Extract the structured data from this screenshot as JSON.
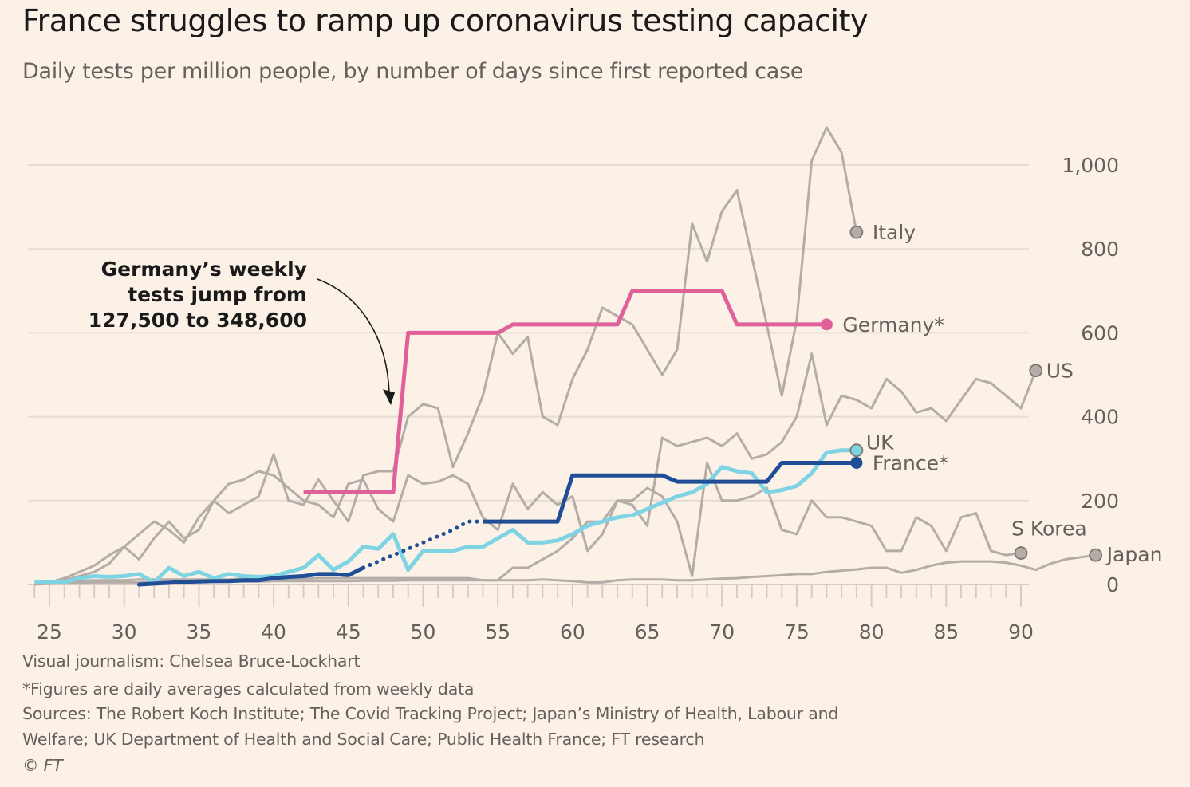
{
  "header": {
    "title": "France struggles to ramp up coronavirus testing capacity",
    "subtitle": "Daily tests per million people, by number of days since first reported case"
  },
  "footer": {
    "credit": "Visual journalism: Chelsea Bruce-Lockhart",
    "note": "*Figures are daily averages calculated from weekly data",
    "sources_line1": "Sources: The Robert Koch Institute; The Covid Tracking Project; Japan’s Ministry of Health, Labour and",
    "sources_line2": "Welfare; UK Department of Health and Social Care; Public Health France; FT research",
    "copyright": "© FT"
  },
  "chart_data": {
    "type": "line",
    "title": "France struggles to ramp up coronavirus testing capacity",
    "subtitle": "Daily tests per million people, by number of days since first reported case",
    "xlabel": "Days since first reported case",
    "ylabel": "Daily tests per million people",
    "xlim": [
      24,
      90
    ],
    "ylim": [
      0,
      1000
    ],
    "x_ticks": [
      25,
      30,
      35,
      40,
      45,
      50,
      55,
      60,
      65,
      70,
      75,
      80,
      85,
      90
    ],
    "y_ticks": [
      0,
      200,
      400,
      600,
      800,
      1000
    ],
    "y_tick_labels": [
      "0",
      "200",
      "400",
      "600",
      "800",
      "1,000"
    ],
    "y_axis_side": "right",
    "grid": true,
    "annotation": {
      "lines": [
        "Germany’s weekly",
        "tests jump from",
        "127,500 to 348,600"
      ],
      "points_to": {
        "x": 48,
        "y": 450
      }
    },
    "series": [
      {
        "name": "Italy",
        "label": "Italy",
        "color": "#b3aca7",
        "highlight": false,
        "label_pos": "right",
        "x_start": 24,
        "values": [
          0,
          5,
          10,
          20,
          30,
          50,
          90,
          60,
          110,
          150,
          110,
          130,
          200,
          170,
          190,
          210,
          310,
          200,
          190,
          250,
          200,
          150,
          260,
          270,
          270,
          400,
          430,
          420,
          280,
          360,
          450,
          600,
          550,
          590,
          400,
          380,
          490,
          560,
          660,
          640,
          620,
          560,
          500,
          560,
          860,
          770,
          890,
          940,
          780,
          620,
          450,
          630,
          1010,
          1090,
          1030,
          840
        ]
      },
      {
        "name": "US",
        "label": "US",
        "color": "#b3aca7",
        "highlight": false,
        "label_pos": "right",
        "x_start": 24,
        "values": [
          0,
          5,
          15,
          30,
          45,
          70,
          90,
          120,
          150,
          130,
          100,
          160,
          200,
          240,
          250,
          270,
          260,
          230,
          200,
          190,
          160,
          240,
          250,
          180,
          150,
          260,
          240,
          245,
          260,
          240,
          160,
          130,
          240,
          180,
          220,
          190,
          210,
          80,
          120,
          200,
          190,
          140,
          350,
          330,
          340,
          350,
          330,
          360,
          300,
          310,
          340,
          400,
          550,
          380,
          450,
          440,
          420,
          490,
          460,
          410,
          420,
          390,
          440,
          490,
          480,
          450,
          420,
          510
        ]
      },
      {
        "name": "S Korea",
        "label": "S Korea",
        "color": "#b3aca7",
        "highlight": false,
        "label_pos": "above",
        "x_start": 24,
        "values": [
          0,
          5,
          5,
          8,
          10,
          10,
          10,
          12,
          12,
          12,
          12,
          12,
          12,
          12,
          14,
          14,
          14,
          14,
          14,
          15,
          15,
          15,
          15,
          15,
          15,
          15,
          15,
          15,
          15,
          15,
          10,
          10,
          40,
          40,
          60,
          80,
          110,
          150,
          150,
          200,
          200,
          230,
          210,
          150,
          20,
          290,
          200,
          200,
          210,
          230,
          130,
          120,
          200,
          160,
          160,
          150,
          140,
          80,
          80,
          160,
          140,
          80,
          160,
          170,
          80,
          70,
          75
        ]
      },
      {
        "name": "Japan",
        "label": "Japan",
        "color": "#b3aca7",
        "highlight": false,
        "label_pos": "right",
        "x_start": 24,
        "values": [
          0,
          2,
          3,
          4,
          5,
          5,
          5,
          5,
          6,
          6,
          6,
          6,
          6,
          7,
          7,
          7,
          8,
          8,
          8,
          8,
          8,
          8,
          9,
          9,
          9,
          10,
          10,
          10,
          10,
          10,
          10,
          10,
          10,
          10,
          12,
          10,
          8,
          5,
          5,
          10,
          12,
          12,
          12,
          10,
          10,
          12,
          14,
          15,
          18,
          20,
          22,
          25,
          25,
          30,
          33,
          36,
          40,
          40,
          28,
          35,
          45,
          52,
          55,
          55,
          55,
          52,
          45,
          35,
          50,
          60,
          65,
          70
        ]
      },
      {
        "name": "Germany*",
        "label": "Germany*",
        "color": "#e0609a",
        "highlight": true,
        "label_pos": "right",
        "x_start": 42,
        "values": [
          220,
          220,
          220,
          220,
          220,
          220,
          220,
          600,
          600,
          600,
          600,
          600,
          600,
          600,
          620,
          620,
          620,
          620,
          620,
          620,
          620,
          620,
          700,
          700,
          700,
          700,
          700,
          700,
          700,
          620,
          620,
          620,
          620,
          620,
          620,
          620
        ]
      },
      {
        "name": "UK",
        "label": "UK",
        "color": "#7fd4e4",
        "highlight": true,
        "label_pos": "above-right",
        "x_start": 24,
        "values": [
          5,
          5,
          5,
          15,
          20,
          18,
          20,
          25,
          5,
          40,
          20,
          30,
          15,
          25,
          20,
          18,
          20,
          30,
          40,
          70,
          35,
          55,
          90,
          85,
          120,
          35,
          80,
          80,
          80,
          90,
          90,
          110,
          130,
          100,
          100,
          105,
          120,
          140,
          150,
          160,
          165,
          180,
          195,
          210,
          220,
          240,
          280,
          270,
          265,
          220,
          225,
          235,
          265,
          315,
          320,
          320
        ]
      },
      {
        "name": "France*",
        "label": "France*",
        "color": "#1f4e96",
        "highlight": true,
        "label_pos": "right",
        "x_start": 31,
        "dashed_range": [
          46,
          54
        ],
        "values": [
          0,
          2,
          4,
          6,
          7,
          8,
          8,
          10,
          10,
          15,
          18,
          20,
          25,
          25,
          22,
          40,
          55,
          70,
          85,
          100,
          115,
          130,
          150,
          150,
          150,
          150,
          150,
          150,
          150,
          260,
          260,
          260,
          260,
          260,
          260,
          260,
          245,
          245,
          245,
          245,
          245,
          245,
          245,
          290,
          290,
          290,
          290,
          290,
          290
        ]
      }
    ]
  }
}
